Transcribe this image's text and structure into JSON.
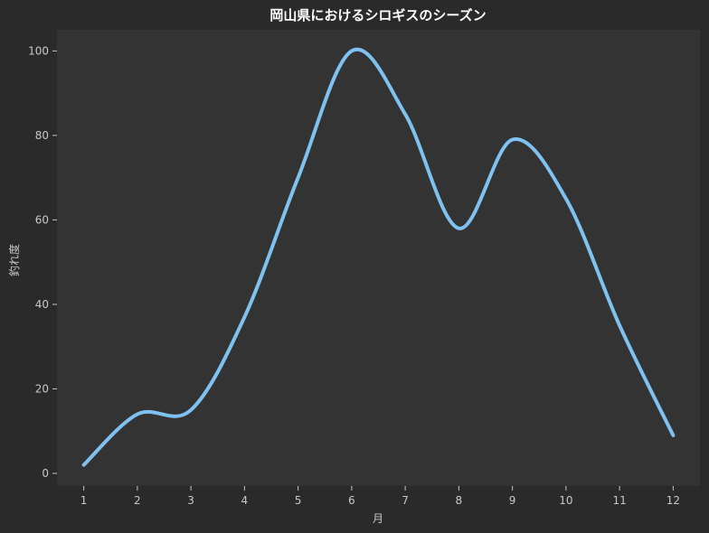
{
  "chart_data": {
    "type": "line",
    "title": "岡山県におけるシロギスのシーズン",
    "xlabel": "月",
    "ylabel": "釣れ度",
    "categories": [
      "1",
      "2",
      "3",
      "4",
      "5",
      "6",
      "7",
      "8",
      "9",
      "10",
      "11",
      "12"
    ],
    "x": [
      1,
      2,
      3,
      4,
      5,
      6,
      7,
      8,
      9,
      10,
      11,
      12
    ],
    "series": [
      {
        "values": [
          2,
          14,
          15,
          37,
          70,
          100,
          85,
          58,
          79,
          65,
          35,
          9
        ]
      }
    ],
    "xlim": [
      0.5,
      12.5
    ],
    "ylim": [
      -3,
      105
    ],
    "yticks": [
      0,
      20,
      40,
      60,
      80,
      100
    ],
    "grid": false,
    "colors": {
      "line": "#7fc1f0",
      "plot_bg": "#333333",
      "page_bg": "#2a2a2a"
    }
  }
}
